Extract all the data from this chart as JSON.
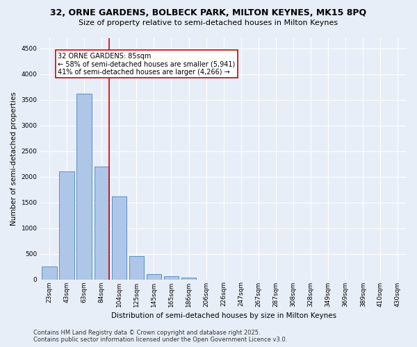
{
  "title_line1": "32, ORNE GARDENS, BOLBECK PARK, MILTON KEYNES, MK15 8PQ",
  "title_line2": "Size of property relative to semi-detached houses in Milton Keynes",
  "xlabel": "Distribution of semi-detached houses by size in Milton Keynes",
  "ylabel": "Number of semi-detached properties",
  "categories": [
    "23sqm",
    "43sqm",
    "63sqm",
    "84sqm",
    "104sqm",
    "125sqm",
    "145sqm",
    "165sqm",
    "186sqm",
    "206sqm",
    "226sqm",
    "247sqm",
    "267sqm",
    "287sqm",
    "308sqm",
    "328sqm",
    "349sqm",
    "369sqm",
    "389sqm",
    "410sqm",
    "430sqm"
  ],
  "values": [
    255,
    2100,
    3620,
    2200,
    1620,
    460,
    105,
    60,
    35,
    0,
    0,
    0,
    0,
    0,
    0,
    0,
    0,
    0,
    0,
    0,
    0
  ],
  "bar_color": "#aec6e8",
  "bar_edge_color": "#5a8fc2",
  "vline_color": "#cc0000",
  "annotation_line1": "32 ORNE GARDENS: 85sqm",
  "annotation_line2": "← 58% of semi-detached houses are smaller (5,941)",
  "annotation_line3": "41% of semi-detached houses are larger (4,266) →",
  "annotation_box_color": "#cc0000",
  "ylim": [
    0,
    4700
  ],
  "yticks": [
    0,
    500,
    1000,
    1500,
    2000,
    2500,
    3000,
    3500,
    4000,
    4500
  ],
  "bg_color": "#e8eef8",
  "plot_bg_color": "#e8eef8",
  "footer_line1": "Contains HM Land Registry data © Crown copyright and database right 2025.",
  "footer_line2": "Contains public sector information licensed under the Open Government Licence v3.0.",
  "title_fontsize": 9,
  "subtitle_fontsize": 8,
  "axis_label_fontsize": 7.5,
  "tick_fontsize": 6.5,
  "annotation_fontsize": 7,
  "footer_fontsize": 6
}
